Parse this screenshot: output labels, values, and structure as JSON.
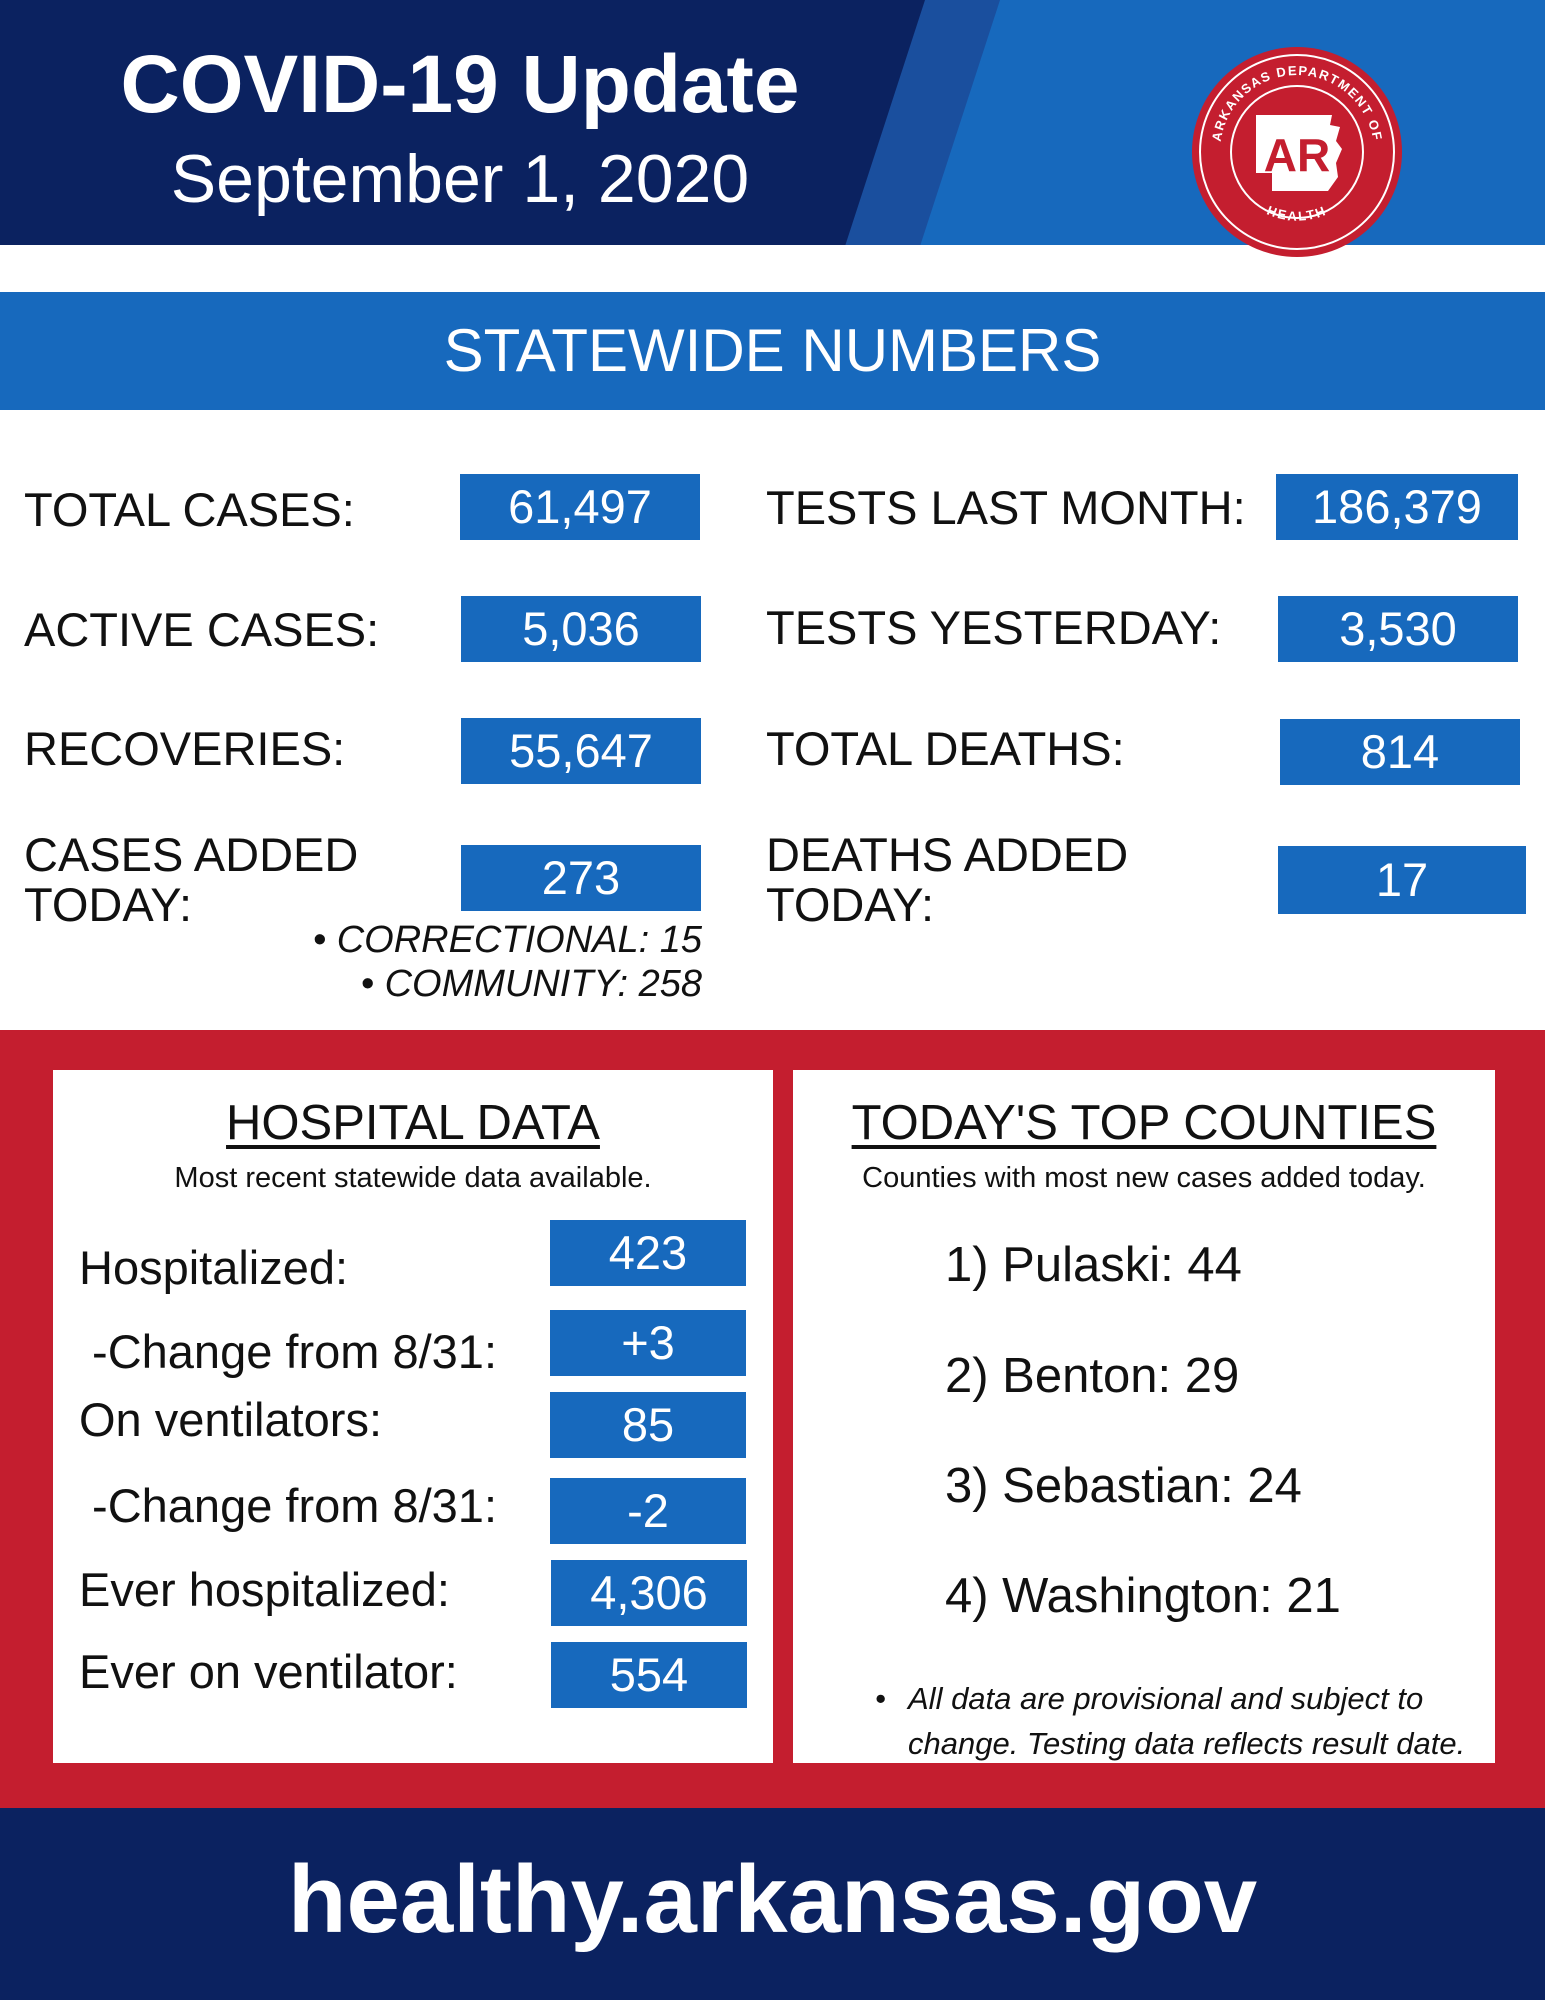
{
  "header": {
    "title": "COVID-19 Update",
    "date": "September 1, 2020"
  },
  "logo": {
    "ring_text_top": "ARKANSAS DEPARTMENT OF",
    "ring_text_bottom": "HEALTH",
    "mark": "AR",
    "color": "#c41e2f"
  },
  "statewide": {
    "banner": "STATEWIDE NUMBERS",
    "total_cases": {
      "label": "TOTAL CASES:",
      "value": "61,497"
    },
    "active_cases": {
      "label": "ACTIVE CASES:",
      "value": "5,036"
    },
    "recoveries": {
      "label": "RECOVERIES:",
      "value": "55,647"
    },
    "cases_added": {
      "label_1": "CASES ADDED",
      "label_2": "TODAY:",
      "value": "273",
      "correctional": "• CORRECTIONAL: 15",
      "community": "• COMMUNITY: 258"
    },
    "tests_last_month": {
      "label": "TESTS LAST MONTH:",
      "value": "186,379"
    },
    "tests_yesterday": {
      "label": "TESTS YESTERDAY:",
      "value": "3,530"
    },
    "total_deaths": {
      "label": "TOTAL DEATHS:",
      "value": "814"
    },
    "deaths_added": {
      "label_1": "DEATHS ADDED",
      "label_2": "TODAY:",
      "value": "17"
    }
  },
  "hospital": {
    "heading": "HOSPITAL DATA",
    "description": "Most recent statewide data available.",
    "rows": [
      {
        "label": "Hospitalized:",
        "value": "423"
      },
      {
        "label": " -Change from 8/31:",
        "value": "+3"
      },
      {
        "label": "On ventilators:",
        "value": "85"
      },
      {
        "label": " -Change from 8/31:",
        "value": "-2"
      },
      {
        "label": "Ever hospitalized:",
        "value": "4,306"
      },
      {
        "label": "Ever on ventilator:",
        "value": "554"
      }
    ]
  },
  "counties": {
    "heading": "TODAY'S TOP COUNTIES",
    "description": "Counties with most new cases added today.",
    "items": [
      "1) Pulaski: 44",
      "2) Benton: 29",
      "3) Sebastian: 24",
      "4) Washington: 21"
    ],
    "note_line1": "All data are provisional and subject to",
    "note_line2": "change. Testing data reflects result date."
  },
  "footer": {
    "url": "healthy.arkansas.gov"
  },
  "colors": {
    "navy": "#0b2260",
    "blue": "#1769bd",
    "red": "#c41e2f"
  }
}
